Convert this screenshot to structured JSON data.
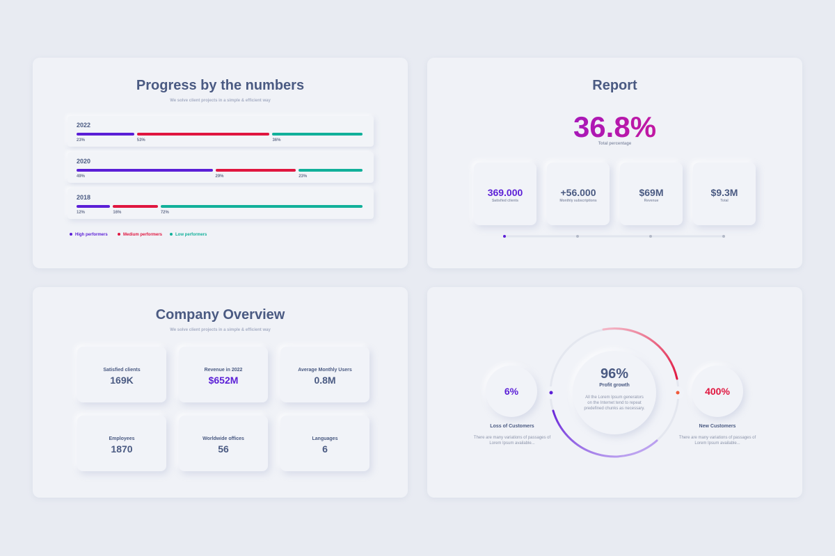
{
  "progress": {
    "title": "Progress by the numbers",
    "subtitle": "We solve client projects in a simple & efficient way",
    "series": [
      {
        "name": "High performers",
        "color": "#5b1fd6"
      },
      {
        "name": "Medium performers",
        "color": "#e0163f"
      },
      {
        "name": "Low performers",
        "color": "#12b09a"
      }
    ],
    "rows": [
      {
        "year": "2022",
        "values": [
          {
            "value": 23,
            "label": "23%"
          },
          {
            "value": 53,
            "label": "53%"
          },
          {
            "value": 36,
            "label": "36%"
          }
        ]
      },
      {
        "year": "2020",
        "values": [
          {
            "value": 49,
            "label": "49%"
          },
          {
            "value": 29,
            "label": "29%"
          },
          {
            "value": 23,
            "label": "23%"
          }
        ]
      },
      {
        "year": "2018",
        "values": [
          {
            "value": 12,
            "label": "12%"
          },
          {
            "value": 16,
            "label": "16%"
          },
          {
            "value": 72,
            "label": "72%"
          }
        ]
      }
    ]
  },
  "report": {
    "title": "Report",
    "headline": "36.8%",
    "headline_label": "Total percentage",
    "cards": [
      {
        "value": "369.000",
        "label": "Satisfied clients"
      },
      {
        "value": "+56.000",
        "label": "Monthly subscriptions"
      },
      {
        "value": "$69M",
        "label": "Revenue"
      },
      {
        "value": "$9.3M",
        "label": "Total"
      }
    ]
  },
  "overview": {
    "title": "Company Overview",
    "subtitle": "We solve client projects in a simple & efficient way",
    "cards": [
      {
        "label": "Satisfied clients",
        "value": "169K"
      },
      {
        "label": "Revenue in 2022",
        "value": "$652M"
      },
      {
        "label": "Average Monthly Users",
        "value": "0.8M"
      },
      {
        "label": "Employees",
        "value": "1870"
      },
      {
        "label": "Worldwide offices",
        "value": "56"
      },
      {
        "label": "Languages",
        "value": "6"
      }
    ]
  },
  "profit": {
    "center": {
      "value": "96%",
      "label": "Profit growth",
      "text": "All the Lorem Ipsum generators on the Internet tend to repeat predefined chunks as necessary."
    },
    "left": {
      "value": "6%",
      "label": "Loss of Customers",
      "text": "There are many variations of passages of Lorem Ipsum available..."
    },
    "right": {
      "value": "400%",
      "label": "New Customers",
      "text": "There are many variations of passages of Lorem Ipsum available..."
    }
  }
}
